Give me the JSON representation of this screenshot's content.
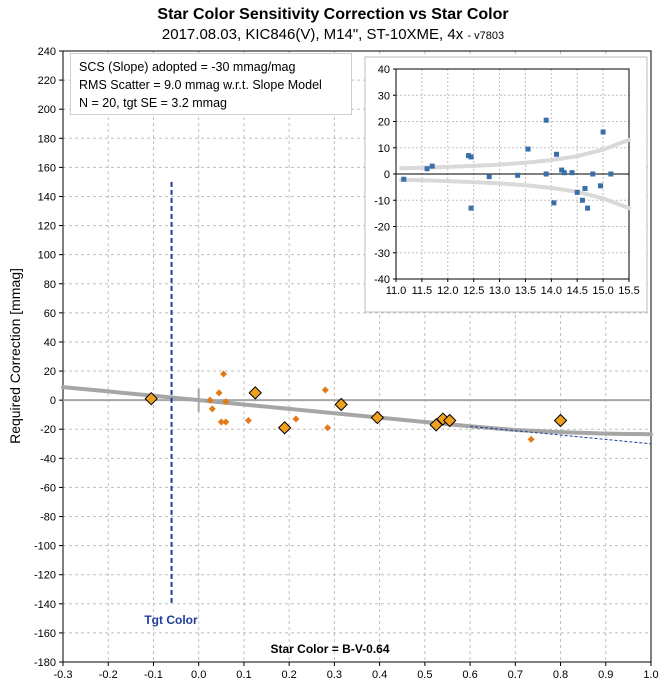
{
  "header": {
    "title": "Star Color Sensitivity Correction vs Star Color",
    "subtitle": "2017.08.03, KIC846(V), M14\", ST-10XME, 4x",
    "version": "- v7803"
  },
  "info_box": {
    "line1": "SCS (Slope) adopted  =  -30 mmag/mag",
    "line2": "RMS Scatter = 9.0 mmag w.r.t. Slope Model",
    "line3": "N = 20,  tgt SE = 3.2 mmag"
  },
  "colors": {
    "model_curve": "#a6a6a6",
    "target_line": "#1f3c99",
    "small_points": "#e07b17",
    "binned_points": "#f0a020",
    "inset_points": "#3a6fa8",
    "inset_band": "#d9d9d9",
    "grid": "#bfbfbf"
  },
  "chart_data": [
    {
      "type": "scatter",
      "ylabel": "Required Correction [mmag]",
      "xlabel": "Star Color = B-V-0.64",
      "xlim": [
        -0.3,
        1.0
      ],
      "ylim": [
        -180,
        240
      ],
      "x_ticks": [
        "-0.3",
        "-0.2",
        "-0.1",
        "0.0",
        "0.1",
        "0.2",
        "0.3",
        "0.4",
        "0.5",
        "0.6",
        "0.7",
        "0.8",
        "0.9",
        "1.0"
      ],
      "y_ticks": [
        "-180",
        "-160",
        "-140",
        "-120",
        "-100",
        "-80",
        "-60",
        "-40",
        "-20",
        "0",
        "20",
        "40",
        "60",
        "80",
        "100",
        "120",
        "140",
        "160",
        "180",
        "200",
        "220",
        "240"
      ],
      "grid": true,
      "target": {
        "label": "Tgt Color",
        "x": -0.06
      },
      "series": [
        {
          "kind": "star_points",
          "x": [
            0.025,
            0.03,
            0.045,
            0.05,
            0.055,
            0.06,
            0.06,
            0.11,
            0.215,
            0.28,
            0.285,
            0.735
          ],
          "y": [
            0,
            -6,
            5,
            -15,
            18,
            -1,
            -15,
            -14,
            -13,
            7,
            -19,
            -27
          ]
        },
        {
          "kind": "binned_points",
          "x": [
            -0.105,
            0.125,
            0.19,
            0.315,
            0.395,
            0.525,
            0.54,
            0.555,
            0.8
          ],
          "y": [
            1,
            5,
            -19,
            -3,
            -12,
            -17,
            -13,
            -14,
            -14
          ]
        },
        {
          "kind": "model_curve",
          "x": [
            -0.3,
            -0.2,
            -0.1,
            0.0,
            0.1,
            0.2,
            0.3,
            0.4,
            0.5,
            0.6,
            0.7,
            0.8,
            0.9,
            1.0
          ],
          "y": [
            9,
            6,
            3,
            0,
            -3,
            -6,
            -9,
            -12,
            -15,
            -18,
            -20.5,
            -22,
            -23,
            -23.5
          ]
        },
        {
          "kind": "slope_line",
          "x": [
            0.6,
            1.0
          ],
          "y": [
            -18,
            -30
          ]
        }
      ]
    },
    {
      "type": "scatter",
      "xlim": [
        11.0,
        15.5
      ],
      "ylim": [
        -40,
        40
      ],
      "x_ticks": [
        "11.0",
        "11.5",
        "12.0",
        "12.5",
        "13.0",
        "13.5",
        "14.0",
        "14.5",
        "15.0",
        "15.5"
      ],
      "y_ticks": [
        "-40",
        "-30",
        "-20",
        "-10",
        "0",
        "10",
        "20",
        "30",
        "40"
      ],
      "grid": true,
      "series": [
        {
          "kind": "residuals",
          "x": [
            11.15,
            11.6,
            11.7,
            12.4,
            12.45,
            12.45,
            12.8,
            13.35,
            13.55,
            13.9,
            13.9,
            14.05,
            14.1,
            14.2,
            14.25,
            14.4,
            14.5,
            14.6,
            14.65,
            14.7,
            14.8,
            14.95,
            15.0,
            15.15
          ],
          "y": [
            -2,
            2,
            3,
            7,
            6.5,
            -13,
            -1,
            -0.5,
            9.5,
            20.5,
            0,
            -11,
            7.5,
            1.5,
            0.5,
            0.5,
            -7,
            -10,
            -5.5,
            -13,
            0,
            -4.5,
            16,
            0
          ]
        },
        {
          "kind": "error_band_upper",
          "x": [
            11.1,
            11.5,
            12.0,
            12.5,
            13.0,
            13.5,
            14.0,
            14.5,
            15.0,
            15.5
          ],
          "y": [
            2.2,
            2.4,
            2.7,
            3.1,
            3.6,
            4.3,
            5.3,
            6.8,
            9.3,
            13
          ]
        },
        {
          "kind": "error_band_lower",
          "x": [
            11.1,
            11.5,
            12.0,
            12.5,
            13.0,
            13.5,
            14.0,
            14.5,
            15.0,
            15.5
          ],
          "y": [
            -2.2,
            -2.4,
            -2.7,
            -3.1,
            -3.6,
            -4.3,
            -5.3,
            -6.8,
            -9.3,
            -13
          ]
        }
      ]
    }
  ]
}
